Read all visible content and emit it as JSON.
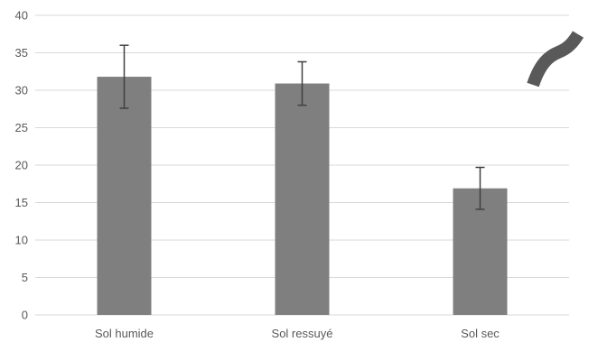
{
  "chart_data": {
    "type": "bar",
    "title": "",
    "xlabel": "",
    "ylabel": "",
    "categories": [
      "Sol humide",
      "Sol ressuyé",
      "Sol sec"
    ],
    "values": [
      31.8,
      30.9,
      16.9
    ],
    "error": [
      4.2,
      2.9,
      2.8
    ],
    "ylim": [
      0,
      40
    ],
    "yticks": [
      "0",
      "5",
      "10",
      "15",
      "20",
      "25",
      "30",
      "35",
      "40"
    ],
    "grid": true,
    "legend": "none",
    "bar_color": "#7f7f7f",
    "error_color": "#404040",
    "gridline_color": "#d9d9d9",
    "decoration_color": "#595959"
  }
}
